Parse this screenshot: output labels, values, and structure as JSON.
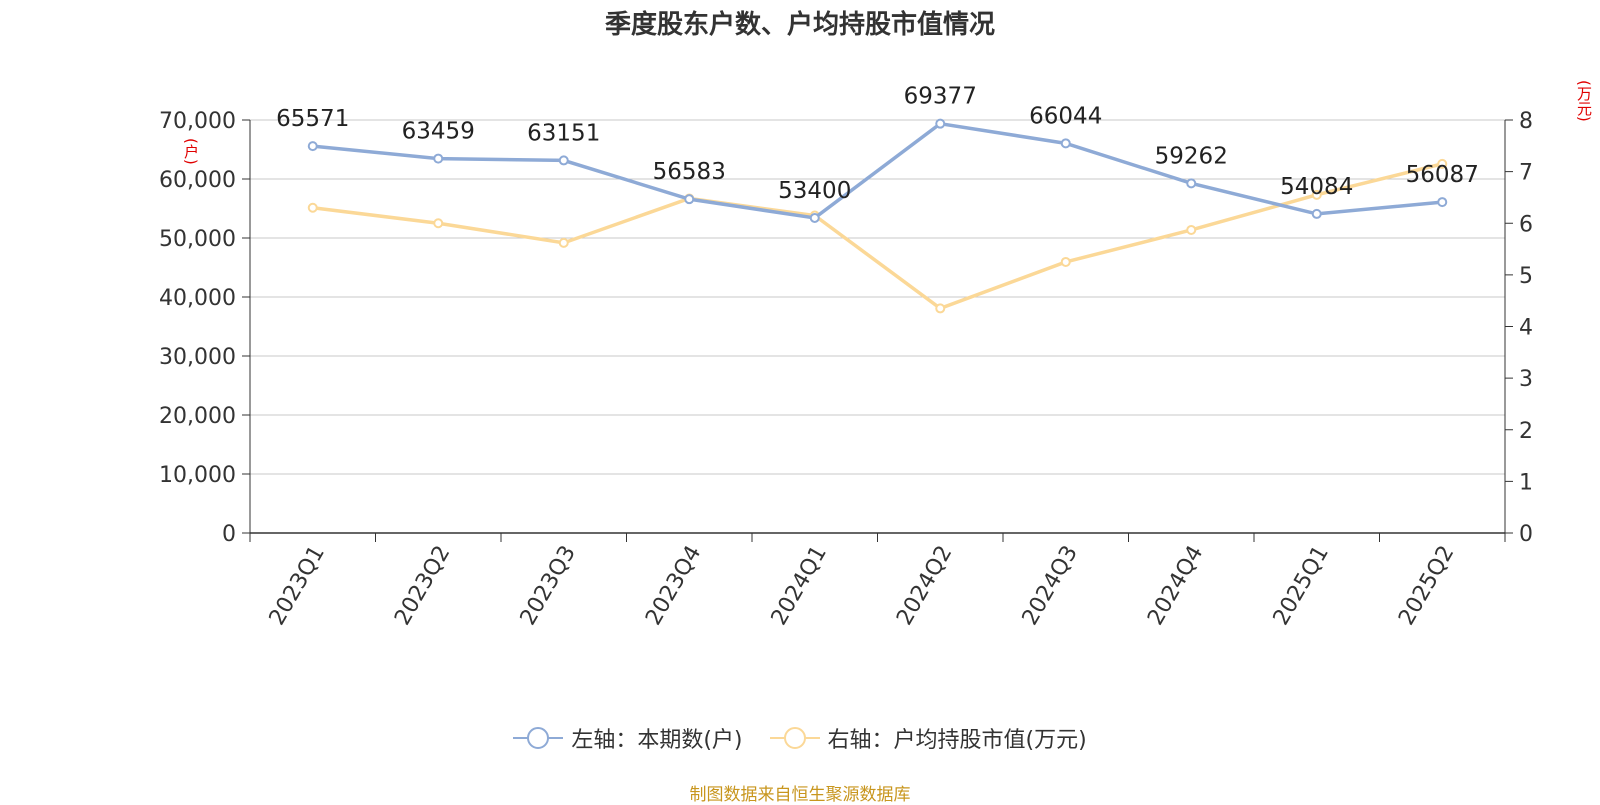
{
  "title": "季度股东户数、户均持股市值情况",
  "left_unit": "(户)",
  "right_unit": "(万元)",
  "source": "制图数据来自恒生聚源数据库",
  "colors": {
    "series_left": "#8eaad6",
    "series_right": "#fbd897",
    "grid": "#c8c8c8"
  },
  "chart_data": {
    "type": "line",
    "title": "季度股东户数、户均持股市值情况",
    "categories": [
      "2023Q1",
      "2023Q2",
      "2023Q3",
      "2023Q4",
      "2024Q1",
      "2024Q2",
      "2024Q3",
      "2024Q4",
      "2025Q1",
      "2025Q2"
    ],
    "left_axis": {
      "label": "(户)",
      "range": [
        0,
        70000
      ],
      "ticks": [
        "0",
        "10,000",
        "20,000",
        "30,000",
        "40,000",
        "50,000",
        "60,000",
        "70,000"
      ]
    },
    "right_axis": {
      "label": "(万元)",
      "range": [
        0,
        8
      ],
      "ticks": [
        "0",
        "1",
        "2",
        "3",
        "4",
        "5",
        "6",
        "7",
        "8"
      ]
    },
    "series": [
      {
        "name": "左轴：本期数(户)",
        "axis": "left",
        "values": [
          65571,
          63459,
          63151,
          56583,
          53400,
          69377,
          66044,
          59262,
          54084,
          56087
        ],
        "labels": [
          "65571",
          "63459",
          "63151",
          "56583",
          "53400",
          "69377",
          "66044",
          "59262",
          "54084",
          "56087"
        ]
      },
      {
        "name": "右轴：户均持股市值(万元)",
        "axis": "right",
        "values": [
          6.3,
          6.0,
          5.62,
          6.48,
          6.15,
          4.35,
          5.25,
          5.87,
          6.55,
          7.15
        ]
      }
    ],
    "grid": true,
    "legend_position": "bottom"
  }
}
